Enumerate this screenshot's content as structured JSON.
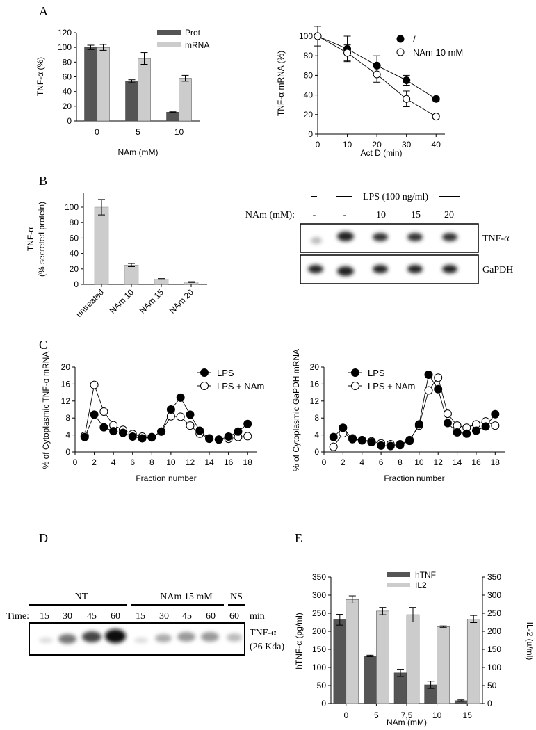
{
  "panels": {
    "A": "A",
    "B": "B",
    "C": "C",
    "D": "D",
    "E": "E"
  },
  "colors": {
    "dark_bar": "#555555",
    "light_bar": "#cccccc",
    "filled_marker": "#000000",
    "open_marker": "#ffffff"
  },
  "chart_data": [
    {
      "id": "A1",
      "type": "bar",
      "categories": [
        "0",
        "5",
        "10"
      ],
      "series": [
        {
          "name": "Prot",
          "values": [
            100,
            54,
            12
          ],
          "errors": [
            3,
            2,
            0.5
          ],
          "color": "#555555"
        },
        {
          "name": "mRNA",
          "values": [
            100,
            85,
            58
          ],
          "errors": [
            4,
            8,
            4
          ],
          "color": "#cccccc"
        }
      ],
      "xlabel": "NAm (mM)",
      "ylabel": "TNF-α (%)",
      "ylim": [
        0,
        120
      ],
      "yticks": [
        "0",
        "20",
        "40",
        "60",
        "80",
        "100",
        "120"
      ],
      "legend": "top-right",
      "grid": false
    },
    {
      "id": "A2",
      "type": "line",
      "x": [
        0,
        10,
        20,
        30,
        40
      ],
      "series": [
        {
          "name": "/",
          "values": [
            100,
            87,
            70,
            55,
            36
          ],
          "errors": [
            0,
            13,
            10,
            5,
            2
          ],
          "marker": "filled"
        },
        {
          "name": "NAm 10 mM",
          "values": [
            100,
            83,
            61,
            36,
            18
          ],
          "errors": [
            10,
            8,
            8,
            8,
            2
          ],
          "marker": "open"
        }
      ],
      "xlabel": "Act D (min)",
      "ylabel": "TNF-α mRNA (%)",
      "xticks": [
        "0",
        "10",
        "20",
        "30",
        "40"
      ],
      "ylim": [
        0,
        100
      ],
      "yticks": [
        "0",
        "20",
        "40",
        "60",
        "80",
        "100"
      ],
      "legend": "top-right",
      "grid": false
    },
    {
      "id": "B1",
      "type": "bar",
      "categories": [
        "untreated",
        "NAm 10",
        "NAm 15",
        "NAm 20"
      ],
      "values": [
        100,
        25,
        7,
        3
      ],
      "errors": [
        10,
        2,
        0.5,
        0.5
      ],
      "xlabel": "",
      "ylabel_line1": "TNF-α",
      "ylabel_line2": "(% secreted protein)",
      "ylim": [
        0,
        100
      ],
      "yticks": [
        "0",
        "20",
        "40",
        "60",
        "80",
        "100"
      ],
      "grid": false
    },
    {
      "id": "C1",
      "type": "line",
      "x": [
        1,
        2,
        3,
        4,
        5,
        6,
        7,
        8,
        9,
        10,
        11,
        12,
        13,
        14,
        15,
        16,
        17,
        18
      ],
      "series": [
        {
          "name": "LPS",
          "values": [
            3.5,
            8.8,
            5.8,
            4.9,
            4.5,
            3.6,
            3.2,
            3.5,
            4.8,
            10,
            12.8,
            8.8,
            5.0,
            3.1,
            2.9,
            3.6,
            4.8,
            6.6
          ],
          "marker": "filled"
        },
        {
          "name": "LPS + NAm",
          "values": [
            3.8,
            15.8,
            9.5,
            6.3,
            5.2,
            4.2,
            3.6,
            3.4,
            4.8,
            8.4,
            8.3,
            6.2,
            4.3,
            3.2,
            2.9,
            3.1,
            3.5,
            3.7
          ],
          "marker": "open"
        }
      ],
      "xlabel": "Fraction number",
      "ylabel": "% of Cytoplasmic TNF-α mRNA",
      "xticks": [
        "0",
        "2",
        "4",
        "6",
        "8",
        "10",
        "12",
        "14",
        "16",
        "18"
      ],
      "ylim": [
        0,
        20
      ],
      "yticks": [
        "0",
        "4",
        "8",
        "12",
        "16",
        "20"
      ],
      "legend": "top-right",
      "grid": false
    },
    {
      "id": "C2",
      "type": "line",
      "x": [
        1,
        2,
        3,
        4,
        5,
        6,
        7,
        8,
        9,
        10,
        11,
        12,
        13,
        14,
        15,
        16,
        17,
        18
      ],
      "series": [
        {
          "name": "LPS",
          "values": [
            3.5,
            5.7,
            3.0,
            2.7,
            2.3,
            1.5,
            1.4,
            1.6,
            2.6,
            6.5,
            18.2,
            14.8,
            6.8,
            4.6,
            4.3,
            5.0,
            6.0,
            8.9
          ],
          "marker": "filled"
        },
        {
          "name": "LPS + NAm",
          "values": [
            1.2,
            4.4,
            3.2,
            2.8,
            2.5,
            2.0,
            1.8,
            1.8,
            2.8,
            6.2,
            14.5,
            17.5,
            9.0,
            6.2,
            5.7,
            6.5,
            7.2,
            6.2
          ],
          "marker": "open"
        }
      ],
      "xlabel": "Fraction number",
      "ylabel": "% of Cytoplasmic GaPDH mRNA",
      "xticks": [
        "0",
        "2",
        "4",
        "6",
        "8",
        "10",
        "12",
        "14",
        "16",
        "18"
      ],
      "ylim": [
        0,
        20
      ],
      "yticks": [
        "0",
        "4",
        "8",
        "12",
        "16",
        "20"
      ],
      "legend": "top-left",
      "grid": false
    },
    {
      "id": "E1",
      "type": "bar",
      "categories": [
        "0",
        "5",
        "7,5",
        "10",
        "15"
      ],
      "series": [
        {
          "name": "hTNF",
          "values": [
            232,
            132,
            85,
            52,
            8
          ],
          "errors": [
            15,
            2,
            10,
            10,
            2
          ],
          "color": "#555555",
          "axis": "left"
        },
        {
          "name": "IL2",
          "values": [
            288,
            256,
            246,
            213,
            234
          ],
          "errors": [
            10,
            10,
            20,
            2,
            10
          ],
          "color": "#cccccc",
          "axis": "right"
        }
      ],
      "xlabel": "NAm (mM)",
      "ylabel": "hTNF-α (pg/ml)",
      "y2label": "IL-2 (u/ml)",
      "ylim": [
        0,
        350
      ],
      "y2lim": [
        0,
        350
      ],
      "yticks": [
        "0",
        "50",
        "100",
        "150",
        "200",
        "250",
        "300",
        "350"
      ],
      "legend": "top-center",
      "grid": false
    }
  ],
  "blotB": {
    "treatment_label": "LPS (100 ng/ml)",
    "minus_1": "-",
    "minus_2": "-",
    "nam_label": "NAm (mM):",
    "nam_values": [
      "10",
      "15",
      "20"
    ],
    "band_labels": [
      "TNF-α",
      "GaPDH"
    ]
  },
  "blotD": {
    "groups": [
      "NT",
      "NAm 15 mM",
      "NS"
    ],
    "time_label": "Time:",
    "times": [
      "15",
      "30",
      "45",
      "60",
      "15",
      "30",
      "45",
      "60",
      "60"
    ],
    "unit": "min",
    "band_label_1": "TNF-α",
    "band_label_2": "(26 Kda)"
  }
}
